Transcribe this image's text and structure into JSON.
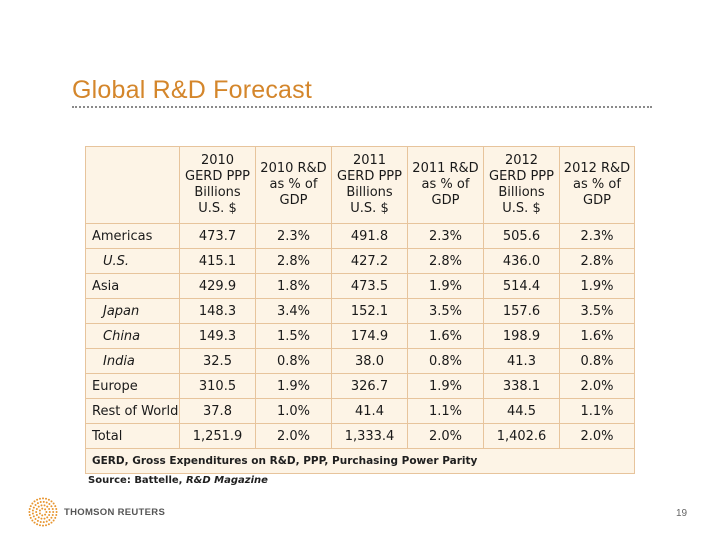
{
  "slide": {
    "title": "Global R&D Forecast",
    "page_number": "19"
  },
  "table": {
    "headers": [
      "",
      "2010\nGERD PPP\nBillions\nU.S. $",
      "2010 R&D\nas % of\nGDP",
      "2011\nGERD PPP\nBillions\nU.S. $",
      "2011 R&D\nas % of\nGDP",
      "2012\nGERD PPP\nBillions\nU.S. $",
      "2012 R&D\nas % of\nGDP"
    ],
    "rows": [
      {
        "region": "Americas",
        "sub": false,
        "values": [
          "473.7",
          "2.3%",
          "491.8",
          "2.3%",
          "505.6",
          "2.3%"
        ]
      },
      {
        "region": "U.S.",
        "sub": true,
        "values": [
          "415.1",
          "2.8%",
          "427.2",
          "2.8%",
          "436.0",
          "2.8%"
        ]
      },
      {
        "region": "Asia",
        "sub": false,
        "values": [
          "429.9",
          "1.8%",
          "473.5",
          "1.9%",
          "514.4",
          "1.9%"
        ]
      },
      {
        "region": "Japan",
        "sub": true,
        "values": [
          "148.3",
          "3.4%",
          "152.1",
          "3.5%",
          "157.6",
          "3.5%"
        ]
      },
      {
        "region": "China",
        "sub": true,
        "values": [
          "149.3",
          "1.5%",
          "174.9",
          "1.6%",
          "198.9",
          "1.6%"
        ]
      },
      {
        "region": "India",
        "sub": true,
        "values": [
          "32.5",
          "0.8%",
          "38.0",
          "0.8%",
          "41.3",
          "0.8%"
        ]
      },
      {
        "region": "Europe",
        "sub": false,
        "values": [
          "310.5",
          "1.9%",
          "326.7",
          "1.9%",
          "338.1",
          "2.0%"
        ]
      },
      {
        "region": "Rest of World",
        "sub": false,
        "values": [
          "37.8",
          "1.0%",
          "41.4",
          "1.1%",
          "44.5",
          "1.1%"
        ]
      },
      {
        "region": "Total",
        "sub": false,
        "values": [
          "1,251.9",
          "2.0%",
          "1,333.4",
          "2.0%",
          "1,402.6",
          "2.0%"
        ]
      }
    ],
    "footnote": "GERD, Gross Expenditures on R&D, PPP, Purchasing Power Parity"
  },
  "source": {
    "label": "Source: Battelle, ",
    "publication": "R&D Magazine"
  },
  "logo": {
    "text": "THOMSON REUTERS"
  },
  "colors": {
    "title": "#d4862b",
    "table_fill": "#fdf4e6",
    "table_border": "#e7c49c",
    "logo_orange": "#e8952f"
  }
}
